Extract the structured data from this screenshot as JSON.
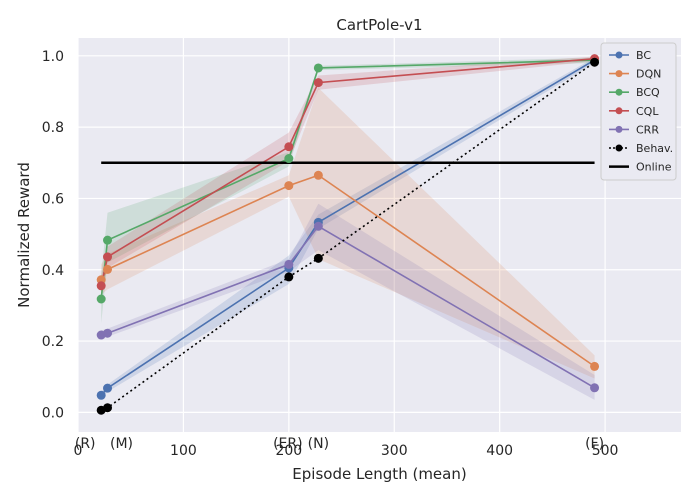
{
  "chart_data": {
    "type": "line",
    "title": "CartPole-v1",
    "xlabel": "Episode Length (mean)",
    "ylabel": "Normalized Reward",
    "xlim": [
      0,
      572
    ],
    "ylim": [
      -0.055,
      1.05
    ],
    "xticks": [
      0,
      100,
      200,
      300,
      400,
      500
    ],
    "yticks": [
      0.0,
      0.2,
      0.4,
      0.6,
      0.8,
      1.0
    ],
    "grid": true,
    "legend_position": "top-right",
    "series": [
      {
        "name": "BC",
        "color": "#4c72b0",
        "x": [
          22,
          28,
          200,
          228,
          490
        ],
        "y": [
          0.048,
          0.068,
          0.405,
          0.533,
          0.988
        ],
        "lower": [
          0.038,
          0.058,
          0.36,
          0.515,
          0.98
        ],
        "upper": [
          0.058,
          0.078,
          0.44,
          0.555,
          0.995
        ]
      },
      {
        "name": "DQN",
        "color": "#dd8452",
        "x": [
          22,
          28,
          200,
          228,
          490
        ],
        "y": [
          0.372,
          0.401,
          0.636,
          0.665,
          0.129
        ],
        "lower": [
          0.33,
          0.345,
          0.605,
          0.43,
          0.095
        ],
        "upper": [
          0.415,
          0.445,
          0.665,
          0.91,
          0.16
        ]
      },
      {
        "name": "BCQ",
        "color": "#55a868",
        "x": [
          22,
          28,
          200,
          228,
          490
        ],
        "y": [
          0.318,
          0.483,
          0.712,
          0.966,
          0.988
        ],
        "lower": [
          0.25,
          0.42,
          0.69,
          0.96,
          0.98
        ],
        "upper": [
          0.385,
          0.56,
          0.73,
          0.972,
          0.995
        ]
      },
      {
        "name": "CQL",
        "color": "#c44e52",
        "x": [
          22,
          28,
          200,
          228,
          490
        ],
        "y": [
          0.355,
          0.436,
          0.745,
          0.925,
          0.992
        ],
        "lower": [
          0.33,
          0.405,
          0.705,
          0.905,
          0.985
        ],
        "upper": [
          0.38,
          0.465,
          0.785,
          0.945,
          0.998
        ]
      },
      {
        "name": "CRR",
        "color": "#8172b3",
        "x": [
          22,
          28,
          200,
          228,
          490
        ],
        "y": [
          0.217,
          0.222,
          0.415,
          0.522,
          0.069
        ],
        "lower": [
          0.205,
          0.212,
          0.395,
          0.455,
          0.035
        ],
        "upper": [
          0.23,
          0.235,
          0.43,
          0.585,
          0.105
        ]
      },
      {
        "name": "Behav.",
        "color": "#000000",
        "style": "dotted",
        "x": [
          22,
          28,
          200,
          228,
          490
        ],
        "y": [
          0.006,
          0.013,
          0.38,
          0.432,
          0.982
        ]
      },
      {
        "name": "Online",
        "color": "#000000",
        "style": "solid",
        "x": [
          22,
          490
        ],
        "y": [
          0.7,
          0.7
        ]
      }
    ],
    "annotations": [
      {
        "text": "(R)",
        "x": 22
      },
      {
        "text": "(M)",
        "x": 28
      },
      {
        "text": "(ER)",
        "x": 200
      },
      {
        "text": "(N)",
        "x": 228
      },
      {
        "text": "(F)",
        "x": 490
      }
    ]
  }
}
